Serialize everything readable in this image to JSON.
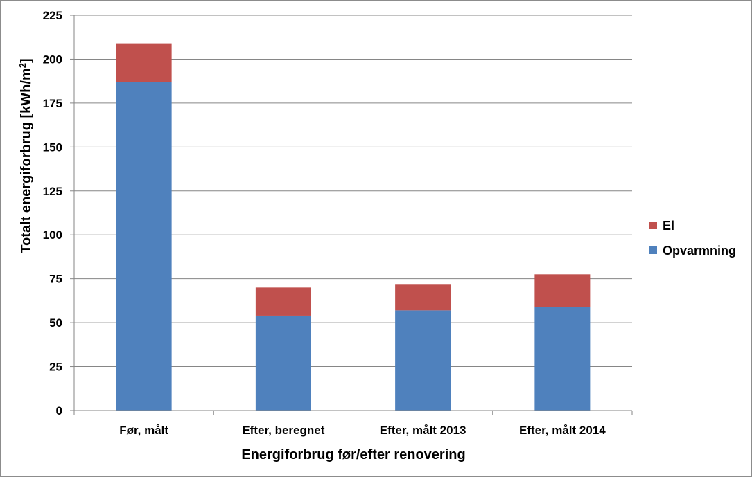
{
  "chart_data": {
    "type": "bar",
    "stacked": true,
    "categories": [
      "Før, målt",
      "Efter, beregnet",
      "Efter, målt 2013",
      "Efter, målt 2014"
    ],
    "series": [
      {
        "name": "Opvarmning",
        "color": "#4f81bd",
        "values": [
          187,
          54,
          57,
          59
        ]
      },
      {
        "name": "El",
        "color": "#c0504d",
        "values": [
          22,
          16,
          15,
          18.5
        ]
      }
    ],
    "title": "",
    "xlabel": "Energiforbrug før/efter renovering",
    "ylabel_main": "Totalt energiforbrug [kWh/m",
    "ylabel_sup": "2",
    "ylabel_end": "]",
    "ylim": [
      0,
      225
    ],
    "yticks": [
      "0",
      "25",
      "50",
      "75",
      "100",
      "125",
      "150",
      "175",
      "200",
      "225"
    ],
    "grid": true,
    "legend_position": "right",
    "legend_order": [
      "El",
      "Opvarmning"
    ]
  }
}
